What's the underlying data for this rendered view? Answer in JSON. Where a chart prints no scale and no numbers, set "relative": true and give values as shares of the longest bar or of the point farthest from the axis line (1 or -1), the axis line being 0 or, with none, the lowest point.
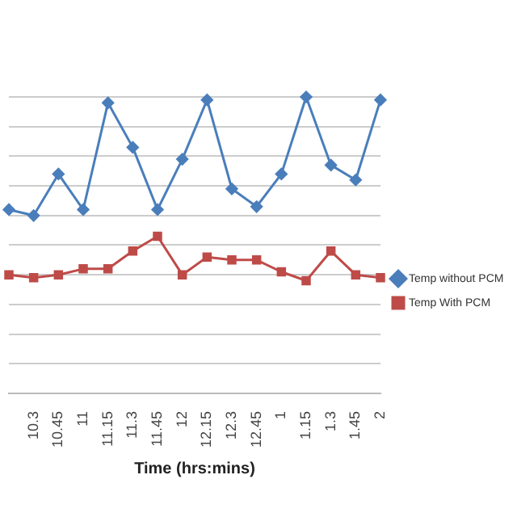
{
  "chart_data": {
    "type": "line",
    "xlabel": "Time (hrs:mins)",
    "relative": true,
    "grid": "y",
    "legend": "right",
    "line_style": "solid",
    "categories": [
      null,
      "10.3",
      "10.45",
      "11",
      "11.15",
      "11.3",
      "11.45",
      "12",
      "12.15",
      "12.3",
      "12.45",
      "1",
      "1.15",
      "1.3",
      "1.45",
      "2"
    ],
    "series": [
      {
        "name": "Temp without PCM",
        "color": "#4a7ebb",
        "marker": "diamond",
        "values": [
          0.62,
          0.6,
          0.74,
          0.62,
          0.98,
          0.83,
          0.62,
          0.79,
          0.99,
          0.69,
          0.63,
          0.74,
          1,
          0.77,
          0.72,
          0.99
        ]
      },
      {
        "name": "Temp With PCM",
        "color": "#be4b48",
        "marker": "square",
        "values": [
          0.4,
          0.39,
          0.4,
          0.42,
          0.42,
          0.48,
          0.53,
          0.4,
          0.46,
          0.45,
          0.45,
          0.41,
          0.38,
          0.48,
          0.4,
          0.39
        ]
      }
    ]
  }
}
